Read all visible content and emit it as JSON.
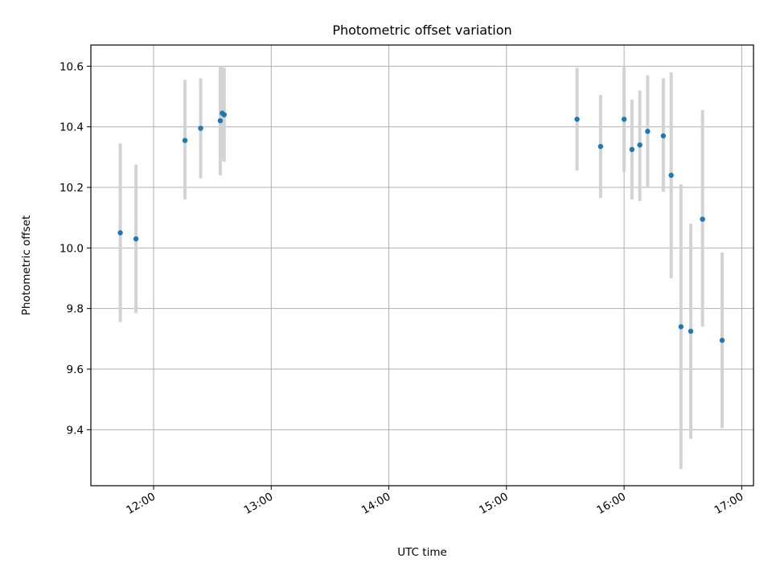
{
  "chart_data": {
    "type": "scatter",
    "title": "Photometric offset variation",
    "xlabel": "UTC time",
    "ylabel": "Photometric offset",
    "xlim": [
      "11:28",
      "17:06"
    ],
    "ylim": [
      9.215,
      10.67
    ],
    "grid": true,
    "x_ticks": [
      "12:00",
      "13:00",
      "14:00",
      "15:00",
      "16:00",
      "17:00"
    ],
    "y_ticks": [
      "9.4",
      "9.6",
      "9.8",
      "10.0",
      "10.2",
      "10.4",
      "10.6"
    ],
    "marker_color": "#1f77b4",
    "errorbar_color": "#d3d3d3",
    "points": [
      {
        "t": "11:43",
        "y": 10.05,
        "lo": 9.755,
        "hi": 10.345
      },
      {
        "t": "11:51",
        "y": 10.03,
        "lo": 9.785,
        "hi": 10.275
      },
      {
        "t": "12:16",
        "y": 10.355,
        "lo": 10.16,
        "hi": 10.555
      },
      {
        "t": "12:24",
        "y": 10.395,
        "lo": 10.23,
        "hi": 10.56
      },
      {
        "t": "12:34",
        "y": 10.42,
        "lo": 10.24,
        "hi": 10.6
      },
      {
        "t": "12:35",
        "y": 10.445,
        "lo": 10.29,
        "hi": 10.6
      },
      {
        "t": "12:36",
        "y": 10.44,
        "lo": 10.285,
        "hi": 10.595
      },
      {
        "t": "15:36",
        "y": 10.425,
        "lo": 10.255,
        "hi": 10.595
      },
      {
        "t": "15:48",
        "y": 10.335,
        "lo": 10.165,
        "hi": 10.505
      },
      {
        "t": "16:00",
        "y": 10.425,
        "lo": 10.25,
        "hi": 10.6
      },
      {
        "t": "16:04",
        "y": 10.325,
        "lo": 10.16,
        "hi": 10.49
      },
      {
        "t": "16:08",
        "y": 10.34,
        "lo": 10.155,
        "hi": 10.52
      },
      {
        "t": "16:12",
        "y": 10.385,
        "lo": 10.2,
        "hi": 10.57
      },
      {
        "t": "16:20",
        "y": 10.37,
        "lo": 10.185,
        "hi": 10.56
      },
      {
        "t": "16:24",
        "y": 10.24,
        "lo": 9.9,
        "hi": 10.58
      },
      {
        "t": "16:29",
        "y": 9.74,
        "lo": 9.27,
        "hi": 10.21
      },
      {
        "t": "16:34",
        "y": 9.725,
        "lo": 9.37,
        "hi": 10.08
      },
      {
        "t": "16:40",
        "y": 10.095,
        "lo": 9.74,
        "hi": 10.455
      },
      {
        "t": "16:50",
        "y": 9.695,
        "lo": 9.405,
        "hi": 9.985
      }
    ]
  }
}
